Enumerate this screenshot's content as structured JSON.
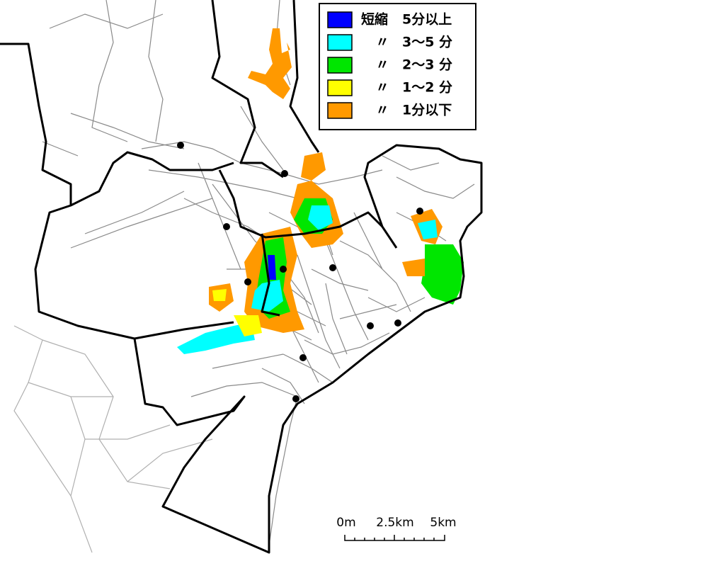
{
  "legend": {
    "items": [
      {
        "prefix": "短縮",
        "label": "5分以上",
        "color": "#0000ff"
      },
      {
        "prefix": "〃",
        "label": "3～5 分",
        "color": "#00ffff"
      },
      {
        "prefix": "〃",
        "label": "2～3 分",
        "color": "#00e600"
      },
      {
        "prefix": "〃",
        "label": "1～2 分",
        "color": "#ffff00"
      },
      {
        "prefix": "〃",
        "label": "1分以下",
        "color": "#ff9900"
      }
    ]
  },
  "scale_bar": {
    "labels": [
      "0m",
      "2.5km",
      "5km"
    ]
  }
}
